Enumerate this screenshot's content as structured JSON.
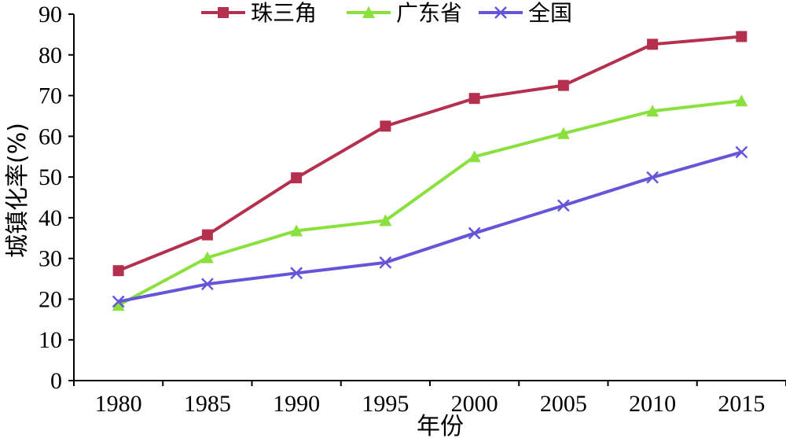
{
  "chart_data": {
    "type": "line",
    "title": "",
    "xlabel": "年份",
    "ylabel": "城镇化率(%)",
    "categories": [
      "1980",
      "1985",
      "1990",
      "1995",
      "2000",
      "2005",
      "2010",
      "2015"
    ],
    "ylim": [
      0,
      90
    ],
    "yticks": [
      "0",
      "10",
      "20",
      "30",
      "40",
      "50",
      "60",
      "70",
      "80",
      "90"
    ],
    "grid": false,
    "legend_position": "top-center",
    "series": [
      {
        "name": "珠三角",
        "color": "#b5304f",
        "marker": "square",
        "values": [
          27.0,
          35.8,
          49.8,
          62.5,
          69.3,
          72.5,
          82.6,
          84.5
        ]
      },
      {
        "name": "广东省",
        "color": "#8ae03c",
        "marker": "triangle",
        "values": [
          18.5,
          30.2,
          36.8,
          39.3,
          55.0,
          60.7,
          66.2,
          68.7
        ]
      },
      {
        "name": "全国",
        "color": "#6655d8",
        "marker": "x",
        "values": [
          19.4,
          23.7,
          26.4,
          29.0,
          36.2,
          43.0,
          49.9,
          56.1
        ]
      }
    ]
  }
}
